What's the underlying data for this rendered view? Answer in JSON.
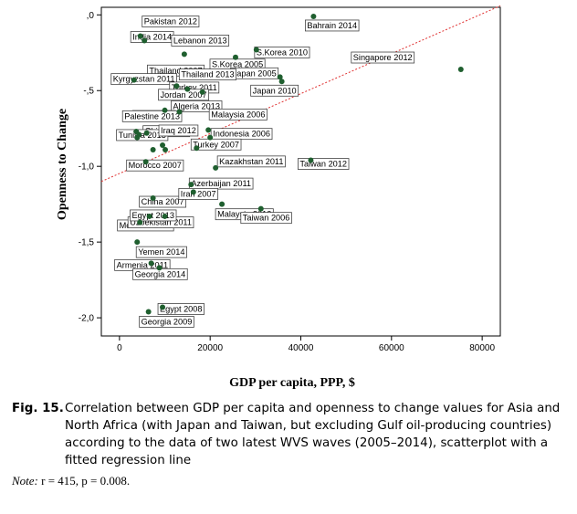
{
  "figure": {
    "label": "Fig. 15.",
    "caption": "Correlation between GDP per capita and openness to change values for Asia and North Africa (with Japan and Taiwan, but excluding Gulf oil-producing countries) according to the data of two latest WVS waves (2005–2014), scatterplot with a fitted regression line",
    "note_label": "Note:",
    "note_text": " r = 415, p = 0.008."
  },
  "chart_data": {
    "type": "scatter",
    "xlabel": "GDP per capita, PPP, $",
    "ylabel": "Openness to Change",
    "xlim": [
      -4000,
      84000
    ],
    "ylim": [
      -2.12,
      0.05
    ],
    "xticks": [
      0,
      20000,
      40000,
      60000,
      80000
    ],
    "xtick_labels": [
      "0",
      "20000",
      "40000",
      "60000",
      "80000"
    ],
    "yticks": [
      0,
      -0.5,
      -1.0,
      -1.5,
      -2.0
    ],
    "ytick_labels": [
      ",0",
      "-,5",
      "-1,0",
      "-1,5",
      "-2,0"
    ],
    "grid": false,
    "point_color": "#1f5f2f",
    "fit_line_color": "#e03030",
    "fit_line": {
      "x": [
        -4000,
        84000
      ],
      "y": [
        -1.1,
        0.06
      ]
    },
    "points": [
      {
        "label": "Pakistan 2012",
        "x": 4600,
        "y": -0.14
      },
      {
        "label": "India 2014",
        "x": 5500,
        "y": -0.17
      },
      {
        "label": "Bahrain 2014",
        "x": 42800,
        "y": -0.01
      },
      {
        "label": "Lebanon 2013",
        "x": 14300,
        "y": -0.26
      },
      {
        "label": "S.Korea 2010",
        "x": 30200,
        "y": -0.23
      },
      {
        "label": "Thailand 2007",
        "x": 12600,
        "y": -0.47
      },
      {
        "label": "S.Korea 2005",
        "x": 25600,
        "y": -0.28
      },
      {
        "label": "Japan 2005",
        "x": 35400,
        "y": -0.41
      },
      {
        "label": "Singapore 2012",
        "x": 75300,
        "y": -0.36
      },
      {
        "label": "Kyrgyzstan 2011",
        "x": 3200,
        "y": -0.43
      },
      {
        "label": "Thailand 2013",
        "x": 15000,
        "y": -0.49
      },
      {
        "label": "Japan 2010",
        "x": 35800,
        "y": -0.44
      },
      {
        "label": "Turkey 2011",
        "x": 18300,
        "y": -0.51
      },
      {
        "label": "Jordan 2007",
        "x": 10000,
        "y": -0.63
      },
      {
        "label": "Algeria 2013",
        "x": 13200,
        "y": -0.64
      },
      {
        "label": "India 2006",
        "x": 3700,
        "y": -0.77
      },
      {
        "label": "Palestine 2013",
        "x": 4300,
        "y": -0.79
      },
      {
        "label": "Malaysia 2006",
        "x": 19600,
        "y": -0.76
      },
      {
        "label": "India 2012",
        "x": 3900,
        "y": -0.81
      },
      {
        "label": "China 2012",
        "x": 6000,
        "y": -0.78
      },
      {
        "label": "Indonesia 2006",
        "x": 20000,
        "y": -0.81
      },
      {
        "label": "Turkey 2007",
        "x": 17000,
        "y": -0.88
      },
      {
        "label": "Tunisia 2013",
        "x": 7400,
        "y": -0.89
      },
      {
        "label": "Iraq 2012",
        "x": 9500,
        "y": -0.86
      },
      {
        "label": "China 2007",
        "x": 10100,
        "y": -0.89
      },
      {
        "label": "Kazakhstan 2011",
        "x": 21200,
        "y": -1.01
      },
      {
        "label": "Taiwan 2012",
        "x": 42200,
        "y": -0.96
      },
      {
        "label": "Morocco 2007",
        "x": 5800,
        "y": -0.97
      },
      {
        "label": "Azerbaijan 2011",
        "x": 15800,
        "y": -1.12
      },
      {
        "label": "Iran 2007",
        "x": 16300,
        "y": -1.17
      },
      {
        "label": "China 2007 (b)",
        "x": 7400,
        "y": -1.21
      },
      {
        "label": "Malaysia 2012",
        "x": 22600,
        "y": -1.25
      },
      {
        "label": "Morocco 2011",
        "x": 6600,
        "y": -1.33
      },
      {
        "label": "Taiwan 2006",
        "x": 31200,
        "y": -1.28
      },
      {
        "label": "Egypt 2013",
        "x": 10000,
        "y": -1.33
      },
      {
        "label": "Uzbekistan 2011",
        "x": 4500,
        "y": -1.37
      },
      {
        "label": "Yemen 2014",
        "x": 3900,
        "y": -1.5
      },
      {
        "label": "Armenia 2011",
        "x": 7000,
        "y": -1.64
      },
      {
        "label": "Georgia 2014",
        "x": 8800,
        "y": -1.67
      },
      {
        "label": "Egypt 2008",
        "x": 9500,
        "y": -1.93
      },
      {
        "label": "Georgia 2009",
        "x": 6400,
        "y": -1.96
      }
    ],
    "labels_shown": [
      {
        "text": "Pakistan 2012",
        "point": 0
      },
      {
        "text": "India 2014",
        "point": 1
      },
      {
        "text": "Bahrain 2014",
        "point": 2
      },
      {
        "text": "Lebanon 2013",
        "point": 3
      },
      {
        "text": "S.Korea 2010",
        "point": 4
      },
      {
        "text": "Thailand 2007",
        "point": 5
      },
      {
        "text": "S.Korea 2005",
        "point": 6
      },
      {
        "text": "Japan 2005",
        "point": 7
      },
      {
        "text": "Singapore 2012",
        "point": 8
      },
      {
        "text": "Kyrgyzstan 2011",
        "point": 9
      },
      {
        "text": "Thailand 2013",
        "point": 10
      },
      {
        "text": "Japan 2010",
        "point": 11
      },
      {
        "text": "Turkey 2011",
        "point": 12
      },
      {
        "text": "Jordan 2007",
        "point": 13
      },
      {
        "text": "Algeria 2013",
        "point": 14
      },
      {
        "text": "India 2006",
        "point": 15
      },
      {
        "text": "Palestine 2013",
        "point": 16
      },
      {
        "text": "Malaysia 2006",
        "point": 17
      },
      {
        "text": "China 2012",
        "point": 19
      },
      {
        "text": "Indonesia 2006",
        "point": 20
      },
      {
        "text": "Turkey 2007",
        "point": 21
      },
      {
        "text": "Tunisia 2013",
        "point": 22
      },
      {
        "text": "Iraq 2012",
        "point": 23
      },
      {
        "text": "Kazakhstan 2011",
        "point": 25
      },
      {
        "text": "Taiwan 2012",
        "point": 26
      },
      {
        "text": "Morocco 2007",
        "point": 27
      },
      {
        "text": "Azerbaijan 2011",
        "point": 28
      },
      {
        "text": "China 2007",
        "point": 30
      },
      {
        "text": "Iran 2007",
        "point": 29
      },
      {
        "text": "Malaysia 2012",
        "point": 31
      },
      {
        "text": "Morocco 2011",
        "point": 32
      },
      {
        "text": "Taiwan 2006",
        "point": 33
      },
      {
        "text": "Uzbekistan 2011",
        "point": 35
      },
      {
        "text": "Egypt 2013",
        "point": 34
      },
      {
        "text": "Yemen 2014",
        "point": 36
      },
      {
        "text": "Armenia 2011",
        "point": 37
      },
      {
        "text": "Georgia 2014",
        "point": 38
      },
      {
        "text": "Egypt 2008",
        "point": 39
      },
      {
        "text": "Georgia 2009",
        "point": 40
      }
    ]
  }
}
